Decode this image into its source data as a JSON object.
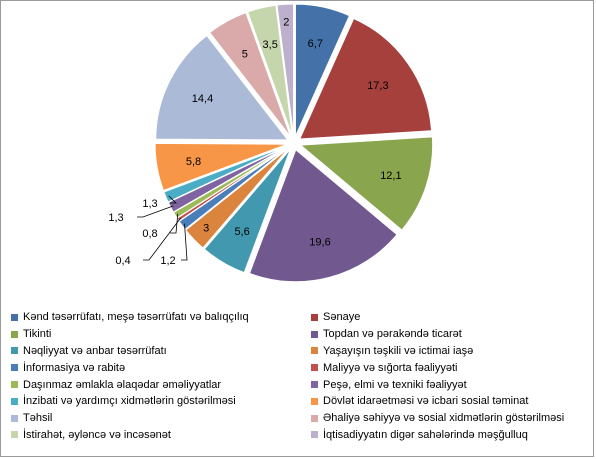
{
  "chart_data": {
    "type": "pie",
    "title": "",
    "slices": [
      {
        "label": "Kənd təsərrüfatı, meşə təsərrüfatı və balıqçılıq",
        "value": 6.7,
        "value_label": "6,7",
        "color": "#4472a8"
      },
      {
        "label": "Sənaye",
        "value": 17.3,
        "value_label": "17,3",
        "color": "#a5403c"
      },
      {
        "label": "Tikinti",
        "value": 12.1,
        "value_label": "12,1",
        "color": "#89a54e"
      },
      {
        "label": "Topdan və pərakəndə ticarət",
        "value": 19.6,
        "value_label": "19,6",
        "color": "#71588f"
      },
      {
        "label": "Nəqliyyat və anbar təsərrüfatı",
        "value": 5.6,
        "value_label": "5,6",
        "color": "#4198af"
      },
      {
        "label": "Yaşayışın təşkili və ictimai iaşə",
        "value": 3,
        "value_label": "3",
        "color": "#db843d"
      },
      {
        "label": "İnformasiya və rabitə",
        "value": 1.2,
        "value_label": "1,2",
        "color": "#4a7ebb"
      },
      {
        "label": "Maliyyə və sığorta fəaliyyəti",
        "value": 0.4,
        "value_label": "0,4",
        "color": "#c0504d"
      },
      {
        "label": "Daşınmaz əmlakla əlaqədar əməliyyatlar",
        "value": 0.8,
        "value_label": "0,8",
        "color": "#9bbb59"
      },
      {
        "label": "Peşə, elmi və texniki fəaliyyət",
        "value": 1.3,
        "value_label": "1,3",
        "color": "#8064a2"
      },
      {
        "label": "İnzibati və yardımçı xidmətlərin göstərilməsi",
        "value": 1.3,
        "value_label": "1,3",
        "color": "#4bacc6"
      },
      {
        "label": "Dövlət idarəetməsi və icbari sosial təminat",
        "value": 5.8,
        "value_label": "5,8",
        "color": "#f79646"
      },
      {
        "label": "Təhsil",
        "value": 14.4,
        "value_label": "14,4",
        "color": "#aabad7"
      },
      {
        "label": "Əhaliyə səhiyyə və sosial xidmətlərin göstərilməsi",
        "value": 5,
        "value_label": "5",
        "color": "#d9aaa9"
      },
      {
        "label": "İstirahət, əyləncə və incəsənət",
        "value": 3.5,
        "value_label": "3,5",
        "color": "#c6d6ac"
      },
      {
        "label": "İqtisadiyyatın  digər sahələrində məşğulluq",
        "value": 2,
        "value_label": "2",
        "color": "#bcb0cd"
      }
    ],
    "legend_position": "bottom",
    "legend_columns": 2
  }
}
